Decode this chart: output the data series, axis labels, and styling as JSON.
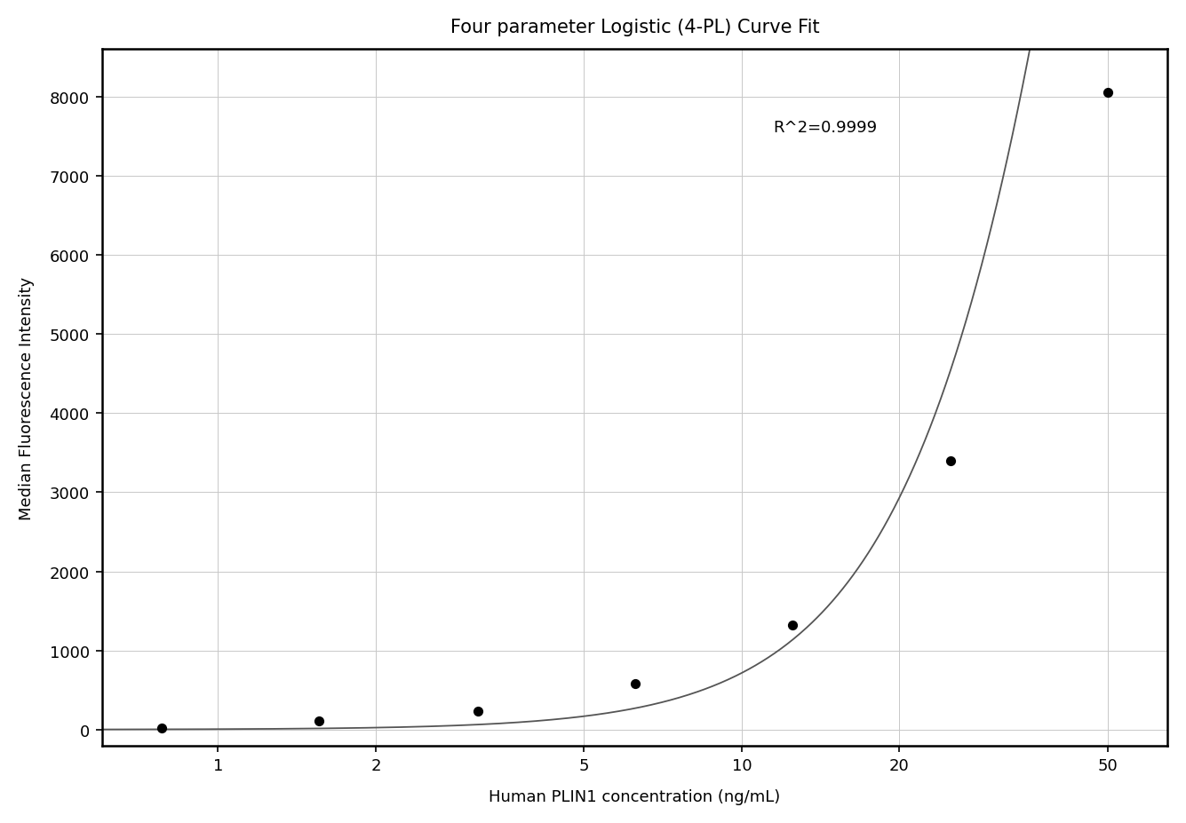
{
  "title": "Four parameter Logistic (4-PL) Curve Fit",
  "xlabel": "Human PLIN1 concentration (ng/mL)",
  "ylabel": "Median Fluorescence Intensity",
  "r_squared_text": "R^2=0.9999",
  "data_points_x": [
    0.78,
    1.56,
    3.13,
    6.25,
    12.5,
    25,
    50
  ],
  "data_points_y": [
    22,
    110,
    230,
    580,
    1320,
    3400,
    8050
  ],
  "xscale": "log",
  "xlim": [
    0.6,
    65
  ],
  "ylim": [
    -200,
    8600
  ],
  "yticks": [
    0,
    1000,
    2000,
    3000,
    4000,
    5000,
    6000,
    7000,
    8000
  ],
  "xticks": [
    1,
    2,
    5,
    10,
    20,
    50
  ],
  "background_color": "#ffffff",
  "grid_color": "#c8c8c8",
  "line_color": "#555555",
  "dot_color": "#000000",
  "title_fontsize": 15,
  "label_fontsize": 13,
  "tick_fontsize": 13,
  "annotation_fontsize": 13,
  "4pl_A": 0.0,
  "4pl_D": 50000.0,
  "4pl_C": 75.0,
  "4pl_B": 2.1
}
